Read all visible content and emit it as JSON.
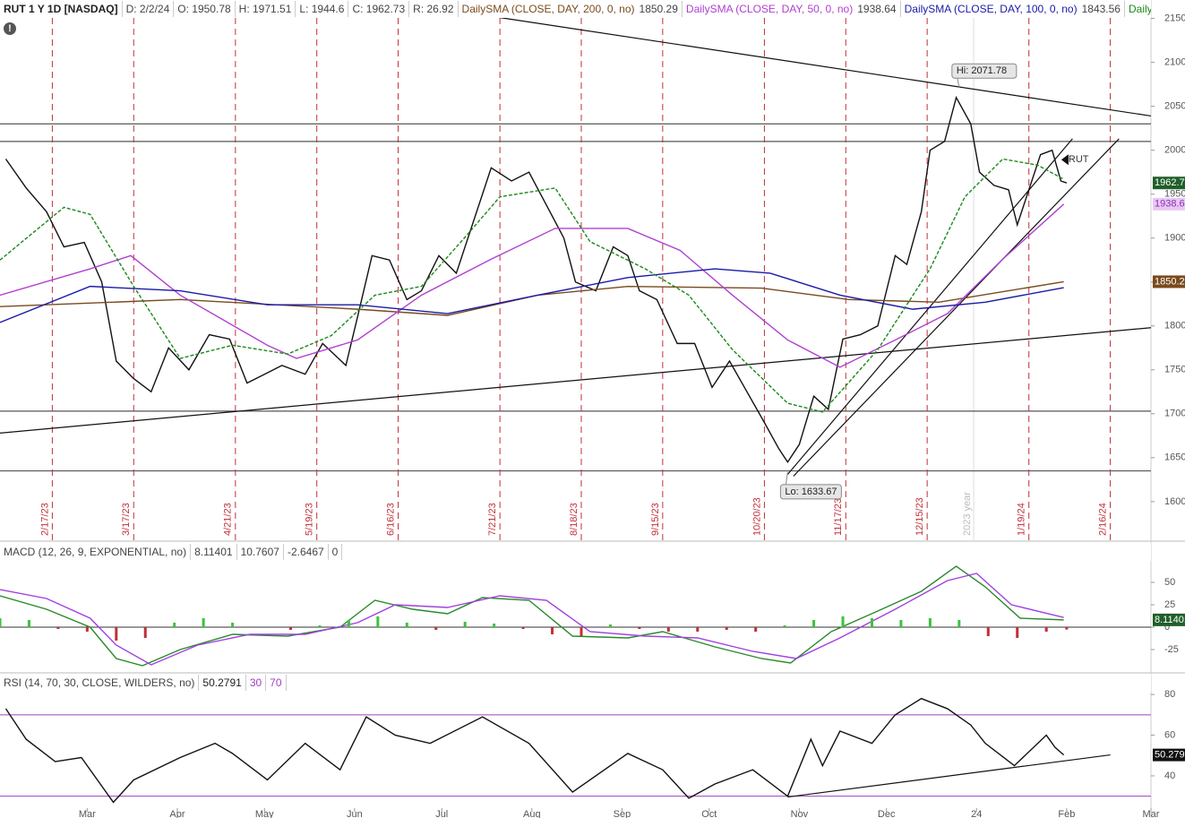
{
  "chart_data": [
    {
      "type": "line",
      "title": "RUT 1 Y 1D [NASDAQ]",
      "header": [
        "D: 2/2/24",
        "O: 1950.78",
        "H: 1971.51",
        "L: 1944.6",
        "C: 1962.73",
        "R: 26.92"
      ],
      "xlim": [
        -30,
        366
      ],
      "ylim": [
        1556,
        2171
      ],
      "yticks": [
        1600,
        1650,
        1700,
        1750,
        1800,
        1850,
        1900,
        1950,
        2000,
        2050,
        2100,
        2150
      ],
      "series": [
        {
          "name": "RUT",
          "color": "#111111",
          "last": 1962.73,
          "tag_color": "#1f5f2a",
          "x": [
            -28,
            -21,
            -14,
            -8,
            -1,
            5,
            10,
            16,
            22,
            28,
            35,
            42,
            49,
            55,
            61,
            67,
            75,
            81,
            89,
            93,
            98,
            104,
            110,
            115,
            121,
            127,
            133,
            139,
            146,
            152,
            156,
            164,
            168,
            175,
            181,
            186,
            190,
            196,
            203,
            209,
            215,
            221,
            227,
            233,
            238,
            241,
            245,
            250,
            255,
            260,
            266,
            272,
            278,
            282,
            287,
            290,
            295,
            299,
            304,
            307,
            312,
            317,
            320,
            323,
            328,
            332,
            335,
            337
          ],
          "values": [
            1990,
            1957,
            1930,
            1890,
            1895,
            1850,
            1760,
            1740,
            1725,
            1775,
            1750,
            1790,
            1785,
            1735,
            1745,
            1755,
            1745,
            1780,
            1755,
            1810,
            1880,
            1875,
            1830,
            1840,
            1880,
            1860,
            1920,
            1980,
            1965,
            1975,
            1950,
            1900,
            1850,
            1840,
            1890,
            1880,
            1840,
            1830,
            1780,
            1780,
            1730,
            1760,
            1725,
            1690,
            1660,
            1645,
            1665,
            1720,
            1705,
            1785,
            1790,
            1800,
            1880,
            1870,
            1930,
            2000,
            2010,
            2060,
            2030,
            1975,
            1960,
            1955,
            1915,
            1945,
            1995,
            2000,
            1965,
            1962.73
          ]
        },
        {
          "name": "DailySMA (CLOSE, DAY, 200, 0, no)",
          "color": "#7a4a1e",
          "last": 1850.29,
          "tag_color": "#7a4a1e",
          "x": [
            -30,
            32,
            93,
            124,
            155,
            186,
            232,
            262,
            293,
            336
          ],
          "values": [
            1822,
            1830,
            1819,
            1812,
            1835,
            1845,
            1843,
            1830,
            1827,
            1850.29
          ]
        },
        {
          "name": "DailySMA (CLOSE, DAY, 50, 0, no)",
          "color": "#b040d0",
          "last": 1938.64,
          "tag_color": "#e9c8f5",
          "x": [
            -30,
            1,
            15,
            32,
            62,
            72,
            93,
            115,
            139,
            161,
            186,
            204,
            222,
            241,
            259,
            278,
            296,
            315,
            336
          ],
          "values": [
            1835,
            1865,
            1880,
            1835,
            1778,
            1763,
            1784,
            1835,
            1876,
            1911,
            1911,
            1886,
            1835,
            1784,
            1753,
            1784,
            1814,
            1876,
            1938.64
          ]
        },
        {
          "name": "DailySMA (CLOSE, DAY, 100, 0, no)",
          "color": "#1a1aa8",
          "last": 1843.56,
          "x": [
            -30,
            1,
            32,
            62,
            93,
            124,
            155,
            186,
            216,
            235,
            259,
            284,
            309,
            336
          ],
          "values": [
            1804,
            1845,
            1840,
            1824,
            1824,
            1814,
            1835,
            1855,
            1865,
            1860,
            1835,
            1819,
            1827,
            1843.56
          ]
        },
        {
          "name": "DailySMA (CLOSE,...",
          "color": "#1a8a1a",
          "x": [
            -30,
            -8,
            1,
            16,
            32,
            50,
            69,
            84,
            99,
            115,
            130,
            142,
            161,
            173,
            192,
            207,
            222,
            241,
            253,
            272,
            290,
            302,
            315,
            327,
            336
          ],
          "values": [
            1875,
            1935,
            1927,
            1845,
            1763,
            1778,
            1768,
            1789,
            1835,
            1845,
            1901,
            1947,
            1957,
            1896,
            1865,
            1835,
            1773,
            1712,
            1702,
            1773,
            1865,
            1947,
            1990,
            1983,
            1967
          ]
        }
      ],
      "horizontal_lines": [
        2030,
        2010,
        1703,
        1635
      ],
      "trendlines": [
        {
          "x": [
            142,
            366
          ],
          "y": [
            2151,
            2039
          ]
        },
        {
          "x": [
            -30,
            366
          ],
          "y": [
            1678,
            1798
          ]
        },
        {
          "x": [
            241,
            339
          ],
          "y": [
            1631,
            2013
          ]
        },
        {
          "x": [
            243,
            355
          ],
          "y": [
            1629,
            2013
          ]
        }
      ],
      "vlines": [
        {
          "value": -12,
          "label": "2/17/23"
        },
        {
          "value": 16,
          "label": "3/17/23"
        },
        {
          "value": 51,
          "label": "4/21/23"
        },
        {
          "value": 79,
          "label": "5/19/23"
        },
        {
          "value": 107,
          "label": "6/16/23"
        },
        {
          "value": 142,
          "label": "7/21/23"
        },
        {
          "value": 170,
          "label": "8/18/23"
        },
        {
          "value": 198,
          "label": "9/15/23"
        },
        {
          "value": 233,
          "label": "10/20/23"
        },
        {
          "value": 261,
          "label": "11/17/23"
        },
        {
          "value": 289,
          "label": "12/15/23"
        },
        {
          "value": 324,
          "label": "1/19/24"
        },
        {
          "value": 352,
          "label": "2/16/24"
        }
      ],
      "year_marker": {
        "value": 305,
        "label": "2023 year"
      },
      "annotations": [
        {
          "x": 300,
          "value": 2071.78,
          "label": "Hi: 2071.78"
        },
        {
          "x": 241,
          "value": 1633.67,
          "label": "Lo: 1633.67"
        }
      ]
    },
    {
      "type": "line",
      "title": "MACD (12, 26, 9, EXPONENTIAL, no)",
      "xlim": [
        -30,
        366
      ],
      "ylim": [
        -48,
        72
      ],
      "yticks": [
        -25,
        0,
        25,
        50
      ],
      "reference_lines": [
        0
      ],
      "series": [
        {
          "color": "#2a8a2a",
          "last": 8.11401,
          "tag_color": "#1f5f2a",
          "x": [
            -30,
            -14,
            1,
            10,
            19,
            32,
            50,
            69,
            87,
            99,
            112,
            124,
            136,
            152,
            167,
            186,
            198,
            216,
            232,
            242,
            256,
            272,
            287,
            299,
            309,
            321,
            336
          ],
          "values": [
            35,
            20,
            0,
            -35,
            -43,
            -25,
            -8,
            -10,
            0,
            30,
            20,
            15,
            33,
            30,
            -10,
            -12,
            -5,
            -22,
            -35,
            -40,
            -5,
            18,
            40,
            68,
            45,
            10,
            8.11401
          ]
        },
        {
          "color": "#a040e0",
          "last": 10.7607,
          "x": [
            -30,
            -14,
            1,
            10,
            22,
            38,
            56,
            75,
            93,
            106,
            124,
            142,
            158,
            173,
            192,
            210,
            229,
            244,
            259,
            278,
            296,
            306,
            318,
            336
          ],
          "values": [
            42,
            32,
            10,
            -20,
            -42,
            -20,
            -8,
            -8,
            5,
            25,
            22,
            35,
            30,
            -5,
            -10,
            -12,
            -27,
            -35,
            -12,
            20,
            52,
            60,
            25,
            10.7607
          ]
        },
        {
          "type": "bar",
          "color": "#3ac43a",
          "negative_color": "#c0303a",
          "last": -2.6467,
          "x": [
            -30,
            -20,
            -10,
            0,
            10,
            20,
            30,
            40,
            50,
            60,
            70,
            80,
            90,
            100,
            110,
            120,
            130,
            140,
            150,
            160,
            170,
            180,
            190,
            200,
            210,
            220,
            230,
            240,
            250,
            260,
            270,
            280,
            290,
            300,
            310,
            320,
            330,
            337
          ],
          "values": [
            10,
            8,
            -2,
            -5,
            -15,
            -12,
            5,
            10,
            5,
            0,
            -3,
            2,
            8,
            12,
            5,
            -3,
            6,
            4,
            -2,
            -8,
            -10,
            3,
            -2,
            -5,
            -5,
            -3,
            -5,
            2,
            8,
            12,
            10,
            8,
            10,
            8,
            -10,
            -12,
            -5,
            -2.6467
          ]
        }
      ]
    },
    {
      "type": "line",
      "title": "RSI (14, 70, 30, CLOSE, WILDERS, no)",
      "xlim": [
        -30,
        366
      ],
      "ylim": [
        25,
        88
      ],
      "yticks": [
        40,
        60,
        80
      ],
      "xticks": [
        {
          "value": 0,
          "label": "Mar"
        },
        {
          "value": 31,
          "label": "Apr"
        },
        {
          "value": 61,
          "label": "May"
        },
        {
          "value": 92,
          "label": "Jun"
        },
        {
          "value": 122,
          "label": "Jul"
        },
        {
          "value": 153,
          "label": "Aug"
        },
        {
          "value": 184,
          "label": "Sep"
        },
        {
          "value": 214,
          "label": "Oct"
        },
        {
          "value": 245,
          "label": "Nov"
        },
        {
          "value": 275,
          "label": "Dec"
        },
        {
          "value": 306,
          "label": "24"
        },
        {
          "value": 337,
          "label": "Feb"
        },
        {
          "value": 366,
          "label": "Mar"
        }
      ],
      "reference_lines": [
        30,
        70
      ],
      "series": [
        {
          "color": "#111111",
          "last": 50.2791,
          "tag_color": "#111111",
          "x": [
            -28,
            -21,
            -11,
            -2,
            9,
            16,
            32,
            44,
            50,
            62,
            75,
            87,
            96,
            106,
            118,
            136,
            152,
            167,
            186,
            198,
            207,
            216,
            229,
            241,
            249,
            253,
            259,
            270,
            278,
            287,
            296,
            304,
            309,
            319,
            330,
            333,
            336
          ],
          "values": [
            73,
            58,
            47,
            49,
            27,
            38,
            49,
            56,
            51,
            38,
            56,
            43,
            69,
            60,
            56,
            69,
            56,
            32,
            51,
            43,
            29,
            36,
            43,
            30,
            58,
            45,
            62,
            56,
            70,
            78,
            73,
            65,
            56,
            45,
            60,
            54,
            50.2791
          ]
        }
      ],
      "trendlines": [
        {
          "x": [
            241,
            352
          ],
          "y": [
            29.6,
            50.3
          ]
        }
      ]
    }
  ]
}
